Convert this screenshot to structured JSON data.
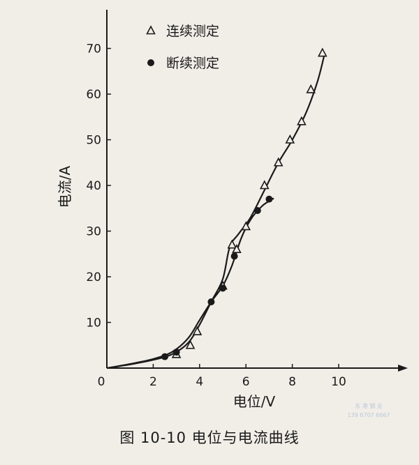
{
  "caption": "图 10-10   电位与电流曲线",
  "watermark": {
    "line1": "东 港 钢 业",
    "line2": "139 6707 6667"
  },
  "chart_data": {
    "type": "line",
    "xlabel": "电位/V",
    "ylabel": "电流/A",
    "xlim": [
      0,
      13
    ],
    "ylim": [
      0,
      75
    ],
    "xticks": [
      0,
      2,
      4,
      6,
      8,
      10
    ],
    "yticks": [
      10,
      20,
      30,
      40,
      50,
      60,
      70
    ],
    "legend_position": "top-center",
    "series": [
      {
        "name": "连续测定",
        "marker": "open-triangle",
        "color": "#1a1a1a",
        "x": [
          3.0,
          3.6,
          3.9,
          5.0,
          5.4,
          5.6,
          6.0,
          6.8,
          7.4,
          7.9,
          8.4,
          8.8,
          9.3
        ],
        "y": [
          3,
          5,
          8,
          18,
          27,
          26,
          31,
          40,
          45,
          50,
          54,
          61,
          69
        ]
      },
      {
        "name": "断续测定",
        "marker": "filled-circle",
        "color": "#1a1a1a",
        "x": [
          2.5,
          3.0,
          4.5,
          5.0,
          5.5,
          6.5,
          7.0
        ],
        "y": [
          2.5,
          3.5,
          14.5,
          17.5,
          24.5,
          34.5,
          37
        ]
      }
    ],
    "curves": [
      {
        "name": "连续测定曲线",
        "x": [
          0,
          1,
          2,
          2.8,
          3.5,
          4.0,
          4.5,
          5.0,
          5.3,
          5.7,
          6.2,
          6.8,
          7.4,
          8.0,
          8.6,
          9.1,
          9.4
        ],
        "y": [
          0,
          0.8,
          1.8,
          3.0,
          5.5,
          9.5,
          14.5,
          19.5,
          26.5,
          29.5,
          33,
          39,
          45,
          50,
          56,
          63,
          69
        ]
      },
      {
        "name": "断续测定曲线",
        "x": [
          0,
          1,
          2,
          2.8,
          3.5,
          4.0,
          4.5,
          5.0,
          5.4,
          5.8,
          6.2,
          6.7,
          7.2
        ],
        "y": [
          0,
          0.9,
          2.0,
          3.5,
          6.5,
          10.5,
          14.5,
          18.0,
          22.5,
          28.5,
          32.5,
          35.5,
          37.2
        ]
      }
    ]
  }
}
